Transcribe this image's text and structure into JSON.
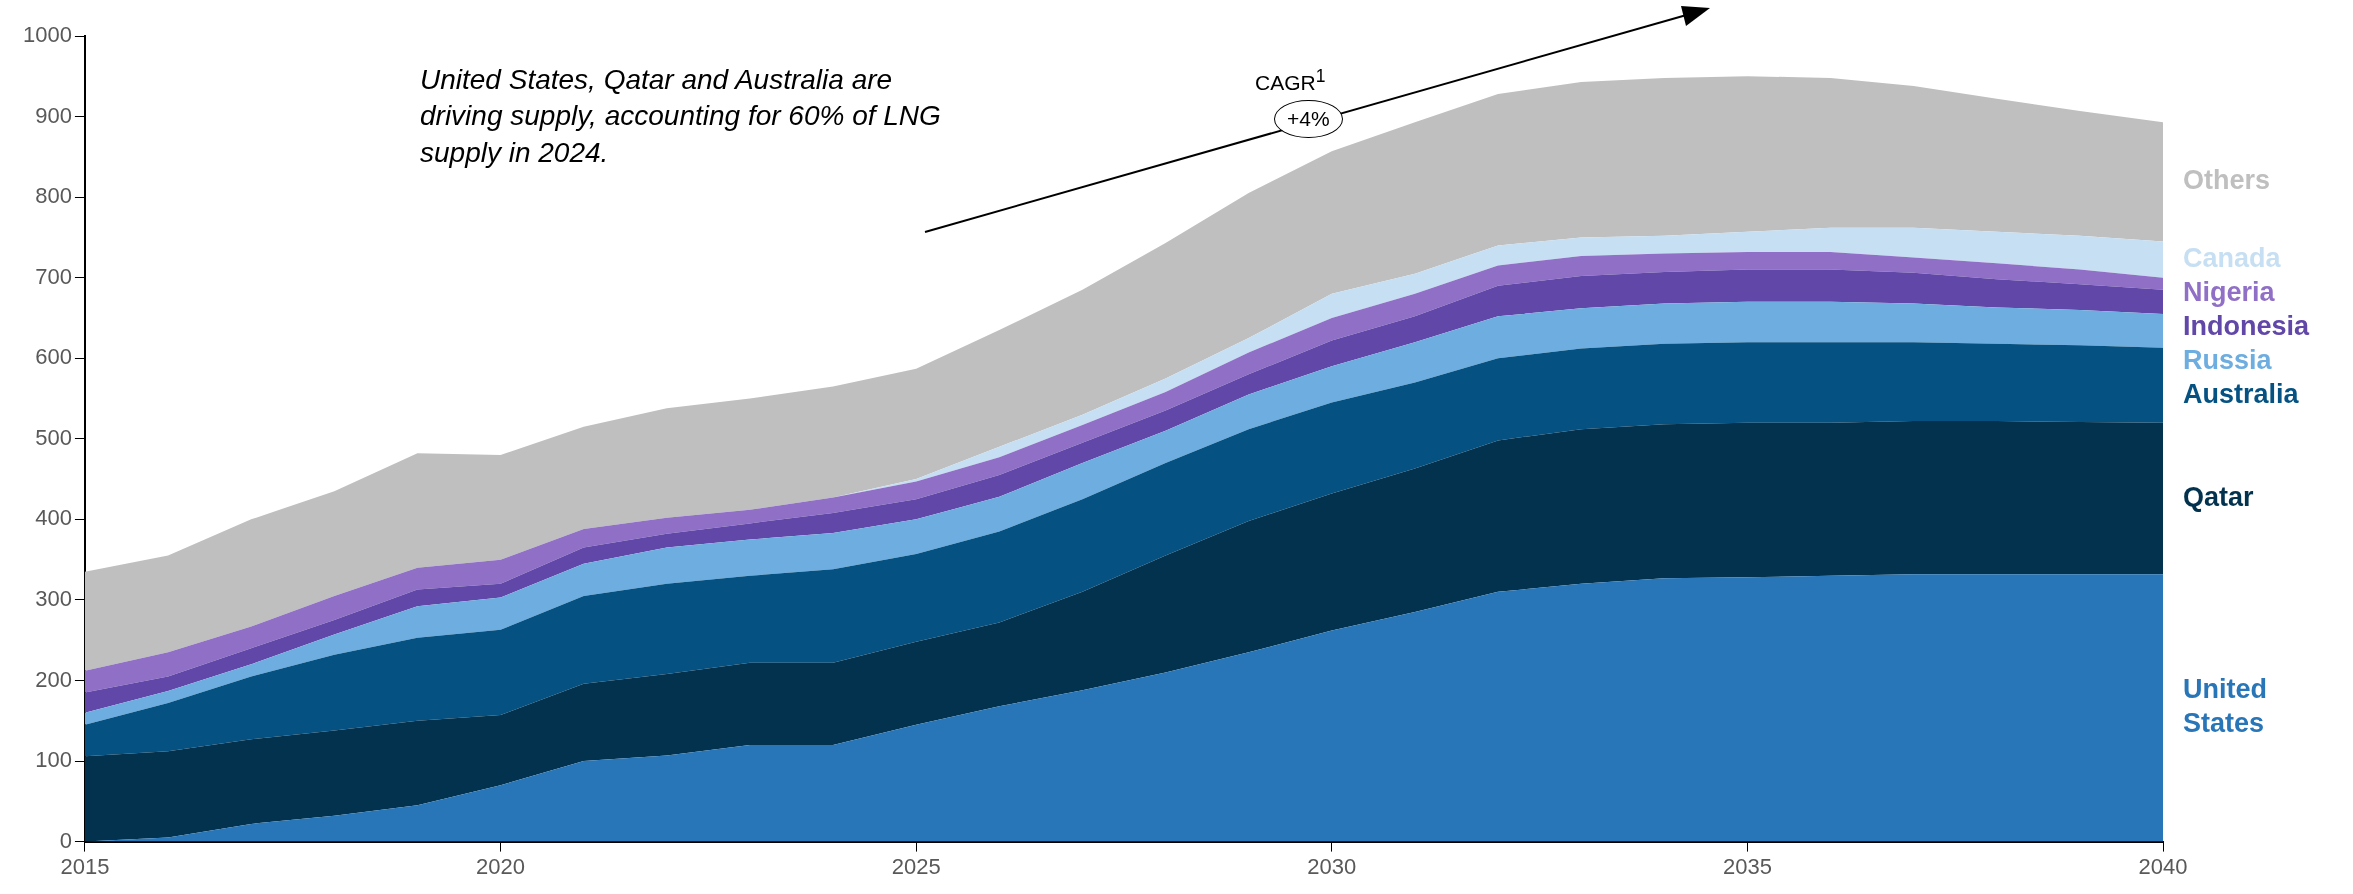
{
  "chart_data": {
    "type": "area",
    "stacked": true,
    "x": [
      2015,
      2016,
      2017,
      2018,
      2019,
      2020,
      2021,
      2022,
      2023,
      2024,
      2025,
      2026,
      2027,
      2028,
      2029,
      2030,
      2031,
      2032,
      2033,
      2034,
      2035,
      2036,
      2037,
      2038,
      2039,
      2040
    ],
    "xlim": [
      2015,
      2040
    ],
    "xticks": [
      2015,
      2020,
      2025,
      2030,
      2035,
      2040
    ],
    "ylim": [
      0,
      1000
    ],
    "yticks": [
      0,
      100,
      200,
      300,
      400,
      500,
      600,
      700,
      800,
      900,
      1000
    ],
    "grid": false,
    "series": [
      {
        "name": "United States",
        "color": "#2876b8",
        "values": [
          0,
          5,
          22,
          32,
          45,
          70,
          100,
          107,
          120,
          120,
          145,
          168,
          188,
          210,
          235,
          262,
          285,
          310,
          320,
          327,
          328,
          330,
          332,
          332,
          332,
          332
        ]
      },
      {
        "name": "Qatar",
        "color": "#03324f",
        "values": [
          106,
          107,
          105,
          106,
          105,
          87,
          96,
          101,
          102,
          102,
          103,
          104,
          122,
          145,
          163,
          170,
          178,
          188,
          192,
          191,
          192,
          190,
          190,
          190,
          189,
          188
        ]
      },
      {
        "name": "Australia",
        "color": "#055282",
        "values": [
          39,
          60,
          78,
          94,
          103,
          106,
          109,
          112,
          108,
          116,
          109,
          113,
          115,
          115,
          114,
          113,
          107,
          102,
          100,
          100,
          100,
          100,
          98,
          96,
          95,
          93
        ]
      },
      {
        "name": "Russia",
        "color": "#6eaddf",
        "values": [
          15,
          15,
          15,
          25,
          39,
          40,
          40,
          45,
          45,
          45,
          43,
          43,
          45,
          40,
          43,
          45,
          50,
          52,
          50,
          50,
          50,
          50,
          48,
          45,
          44,
          42
        ]
      },
      {
        "name": "Indonesia",
        "color": "#6147a8",
        "values": [
          25,
          18,
          20,
          18,
          21,
          17,
          20,
          17,
          20,
          25,
          25,
          27,
          25,
          25,
          25,
          32,
          32,
          38,
          40,
          39,
          40,
          40,
          38,
          35,
          32,
          30
        ]
      },
      {
        "name": "Nigeria",
        "color": "#9070c6",
        "values": [
          27,
          30,
          27,
          30,
          27,
          30,
          23,
          20,
          17,
          19,
          22,
          22,
          22,
          23,
          27,
          28,
          28,
          25,
          25,
          23,
          22,
          22,
          19,
          20,
          18,
          15
        ]
      },
      {
        "name": "Canada",
        "color": "#c7dff2",
        "values": [
          0,
          0,
          0,
          0,
          0,
          0,
          0,
          0,
          0,
          0,
          3,
          13,
          13,
          17,
          18,
          30,
          25,
          25,
          23,
          22,
          25,
          30,
          37,
          39,
          42,
          45
        ]
      },
      {
        "name": "Others",
        "color": "#bfbfbf",
        "values": [
          123,
          120,
          133,
          130,
          142,
          130,
          127,
          136,
          138,
          138,
          137,
          145,
          155,
          168,
          180,
          177,
          188,
          188,
          193,
          196,
          193,
          186,
          176,
          165,
          155,
          148
        ]
      }
    ],
    "annotations": [
      "United States, Qatar and Australia are driving supply, accounting for 60% of LNG supply in 2024.",
      "CAGR$^{1}$",
      "+4%"
    ]
  }
}
